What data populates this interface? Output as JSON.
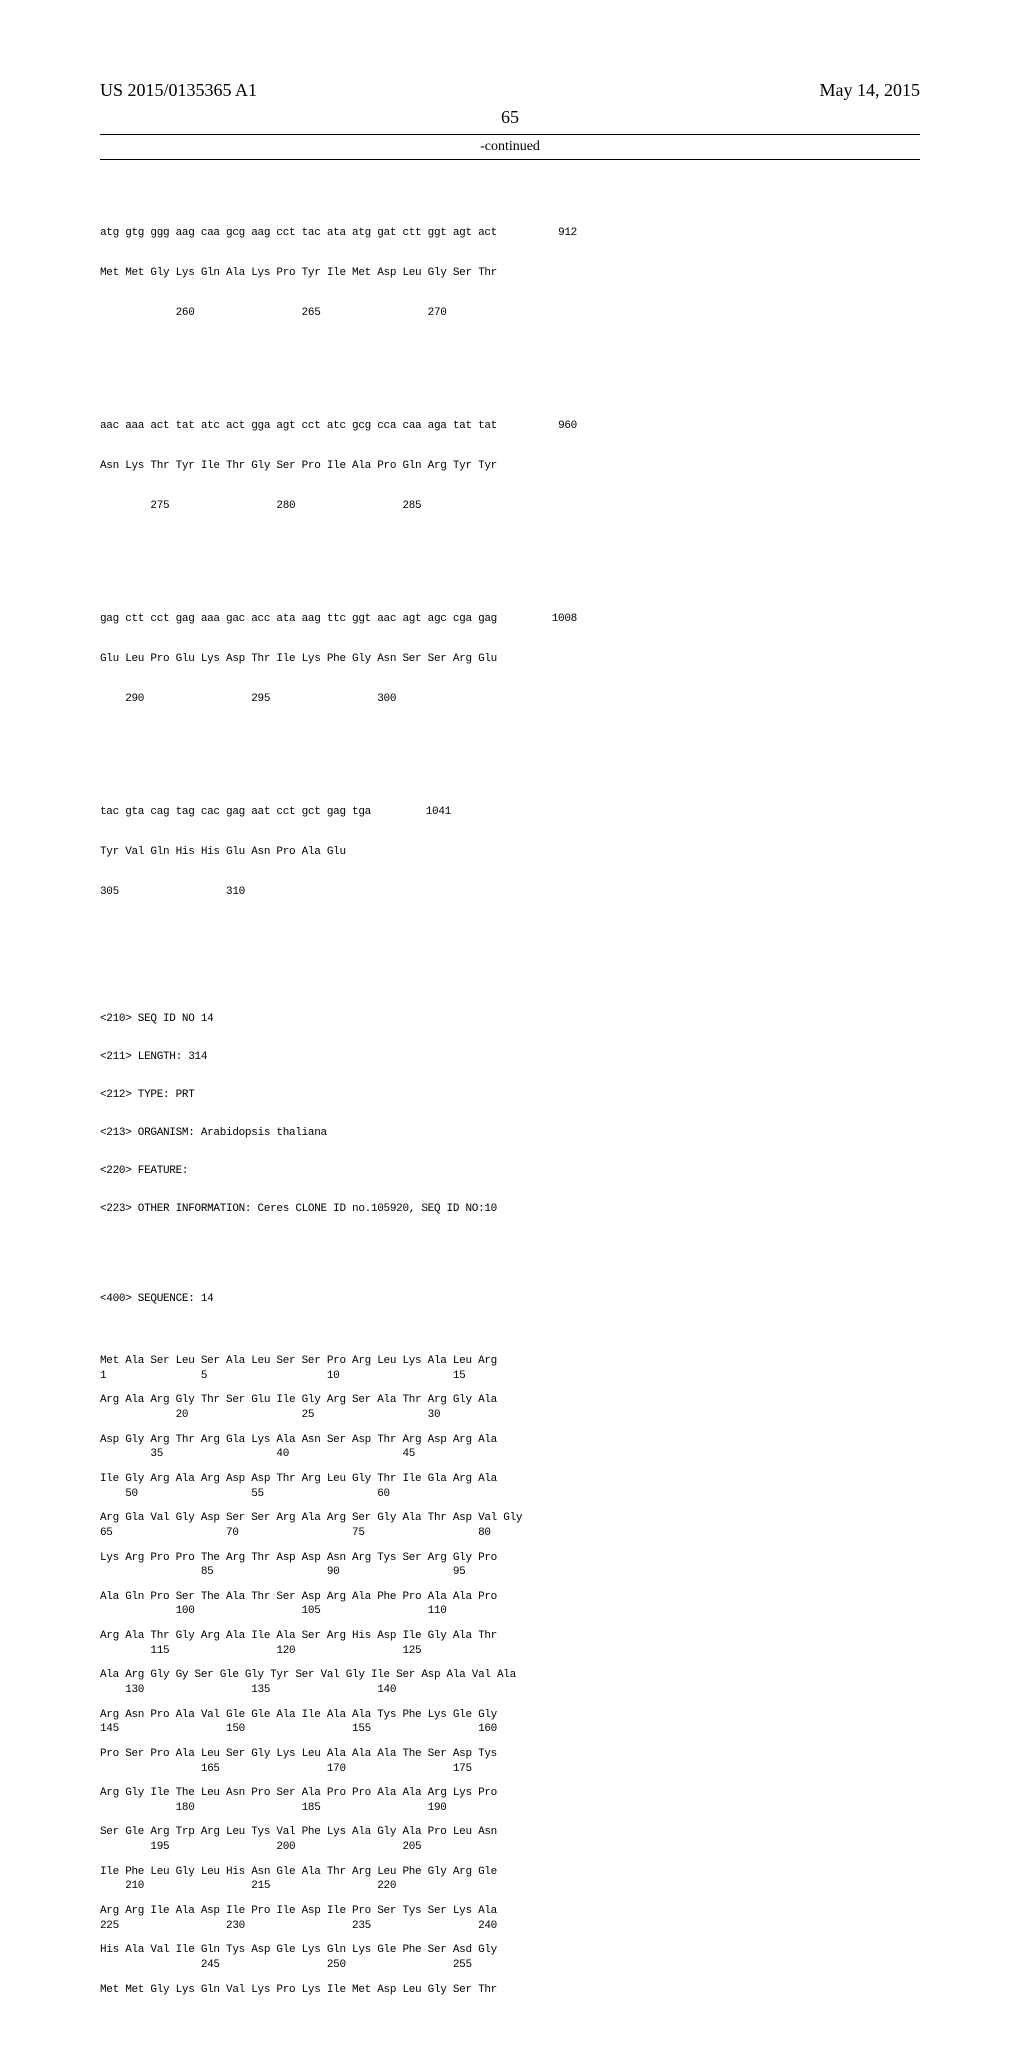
{
  "header": {
    "left": "US 2015/0135365 A1",
    "right": "May 14, 2015",
    "page_number": "65",
    "continued_label": "-continued"
  },
  "colors": {
    "text": "#000000",
    "background": "#ffffff",
    "rule": "#000000"
  },
  "typography": {
    "header_fontsize": 18,
    "body_fontsize": 11,
    "seq_font": "Courier New"
  },
  "dna_blocks": [
    {
      "codons": "atg gtg ggg aag caa gcg aag cct tac ata atg gat ctt ggt agt act",
      "aa": "Met Met Gly Lys Gln Ala Lys Pro Tyr Ile Met Asp Leu Gly Ser Thr",
      "positions": "            260                 265                 270",
      "end": "912"
    },
    {
      "codons": "aac aaa act tat atc act gga agt cct atc gcg cca caa aga tat tat",
      "aa": "Asn Lys Thr Tyr Ile Thr Gly Ser Pro Ile Ala Pro Gln Arg Tyr Tyr",
      "positions": "        275                 280                 285",
      "end": "960"
    },
    {
      "codons": "gag ctt cct gag aaa gac acc ata aag ttc ggt aac agt agc cga gag",
      "aa": "Glu Leu Pro Glu Lys Asp Thr Ile Lys Phe Gly Asn Ser Ser Arg Glu",
      "positions": "    290                 295                 300",
      "end": "1008"
    },
    {
      "codons": "tac gta cag tag cac gag aat cct gct gag tga",
      "aa": "Tyr Val Gln His His Glu Asn Pro Ala Glu",
      "positions": "305                 310",
      "end": "1041"
    }
  ],
  "meta": {
    "lines": [
      "<210> SEQ ID NO 14",
      "<211> LENGTH: 314",
      "<212> TYPE: PRT",
      "<213> ORGANISM: Arabidopsis thaliana",
      "<220> FEATURE:",
      "<223> OTHER INFORMATION: Ceres CLONE ID no.105920, SEQ ID NO:10"
    ],
    "seq_label": "<400> SEQUENCE: 14"
  },
  "aa_blocks": [
    {
      "row": "Met Ala Ser Leu Ser Ala Leu Ser Ser Pro Arg Leu Lys Ala Leu Arg",
      "positions": "1               5                   10                  15"
    },
    {
      "row": "Arg Ala Arg Gly Thr Ser Glu Ile Gly Arg Ser Ala Thr Arg Gly Ala",
      "positions": "            20                  25                  30"
    },
    {
      "row": "Asp Gly Arg Thr Arg Gla Lys Ala Asn Ser Asp Thr Arg Asp Arg Ala",
      "positions": "        35                  40                  45"
    },
    {
      "row": "Ile Gly Arg Ala Arg Asp Asp Thr Arg Leu Gly Thr Ile Gla Arg Ala",
      "positions": "    50                  55                  60"
    },
    {
      "row": "Arg Gla Val Gly Asp Ser Ser Arg Ala Arg Ser Gly Ala Thr Asp Val Gly",
      "positions": "65                  70                  75                  80"
    },
    {
      "row": "Lys Arg Pro Pro The Arg Thr Asp Asp Asn Arg Tys Ser Arg Gly Pro",
      "positions": "                85                  90                  95"
    },
    {
      "row": "Ala Gln Pro Ser The Ala Thr Ser Asp Arg Ala Phe Pro Ala Ala Pro",
      "positions": "            100                 105                 110"
    },
    {
      "row": "Arg Ala Thr Gly Arg Ala Ile Ala Ser Arg His Asp Ile Gly Ala Thr",
      "positions": "        115                 120                 125"
    },
    {
      "row": "Ala Arg Gly Gy Ser Gle Gly Tyr Ser Val Gly Ile Ser Asp Ala Val Ala",
      "positions": "    130                 135                 140"
    },
    {
      "row": "Arg Asn Pro Ala Val Gle Gle Ala Ile Ala Ala Tys Phe Lys Gle Gly",
      "positions": "145                 150                 155                 160"
    },
    {
      "row": "Pro Ser Pro Ala Leu Ser Gly Lys Leu Ala Ala Ala The Ser Asp Tys",
      "positions": "                165                 170                 175"
    },
    {
      "row": "Arg Gly Ile The Leu Asn Pro Ser Ala Pro Pro Ala Ala Arg Lys Pro",
      "positions": "            180                 185                 190"
    },
    {
      "row": "Ser Gle Arg Trp Arg Leu Tys Val Phe Lys Ala Gly Ala Pro Leu Asn",
      "positions": "        195                 200                 205"
    },
    {
      "row": "Ile Phe Leu Gly Leu His Asn Gle Ala Thr Arg Leu Phe Gly Arg Gle",
      "positions": "    210                 215                 220"
    },
    {
      "row": "Arg Arg Ile Ala Asp Ile Pro Ile Asp Ile Pro Ser Tys Ser Lys Ala",
      "positions": "225                 230                 235                 240"
    },
    {
      "row": "His Ala Val Ile Gln Tys Asp Gle Lys Gln Lys Gle Phe Ser Asd Gly",
      "positions": "                245                 250                 255"
    },
    {
      "row": "Met Met Gly Lys Gln Val Lys Pro Lys Ile Met Asp Leu Gly Ser Thr",
      "positions": ""
    }
  ]
}
